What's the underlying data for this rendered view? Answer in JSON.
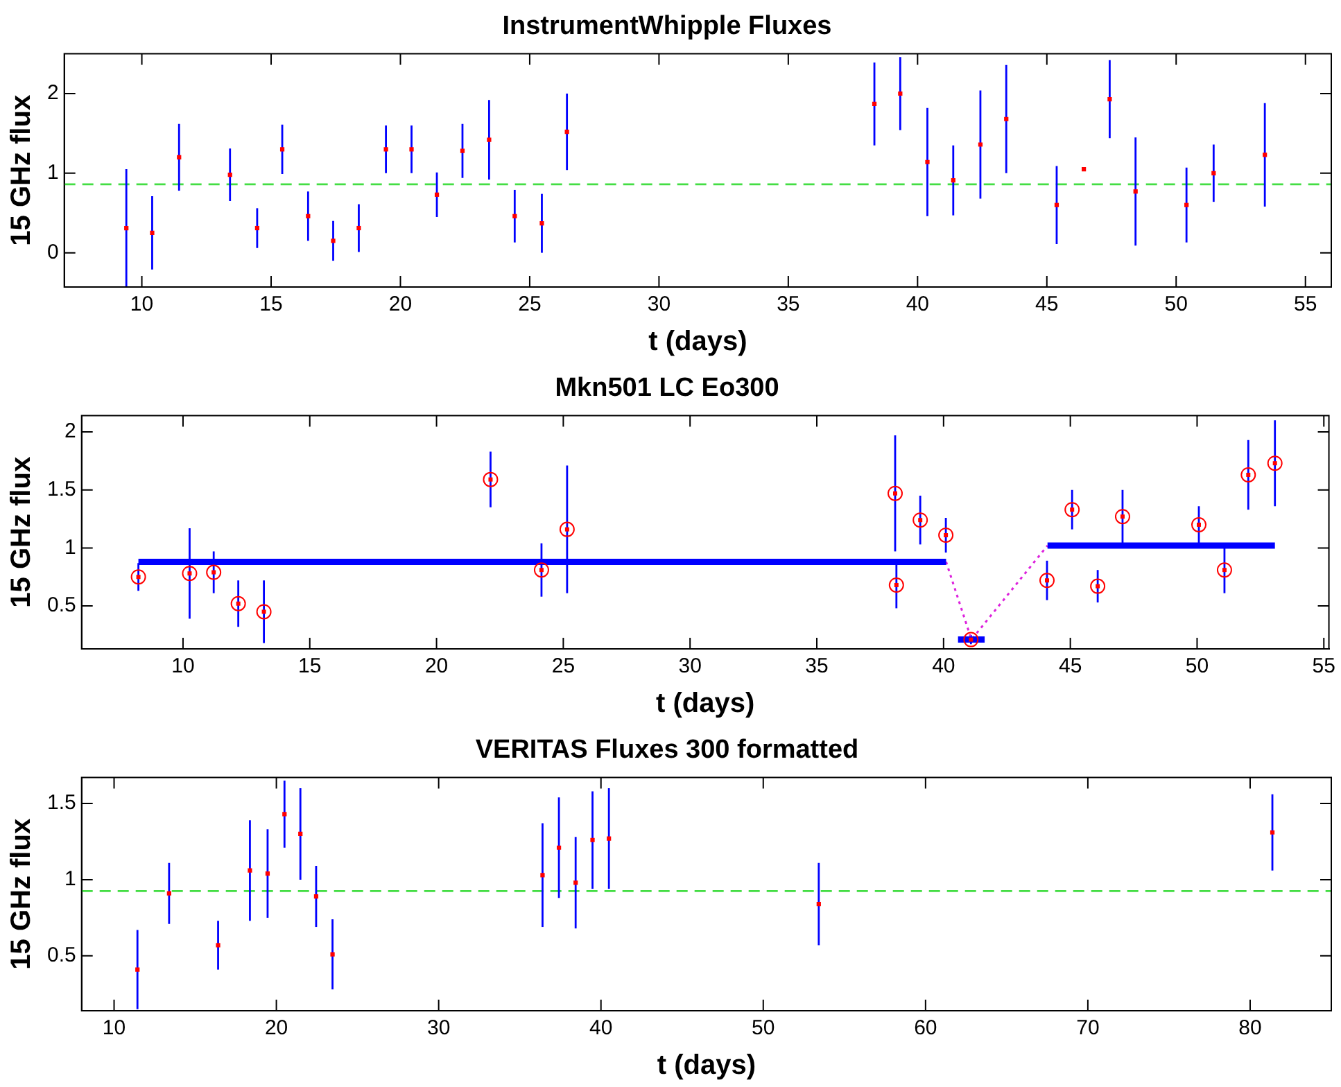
{
  "chart_data": [
    {
      "type": "scatter",
      "title": "InstrumentWhipple Fluxes",
      "xlabel": "t (days)",
      "ylabel": "15 GHz flux",
      "xlim": [
        7,
        56
      ],
      "xticks": [
        10,
        15,
        20,
        25,
        30,
        35,
        40,
        45,
        50,
        55
      ],
      "ylim": [
        -0.43,
        2.5
      ],
      "yticks": [
        0,
        1,
        2
      ],
      "grid": false,
      "legend": false,
      "marker": "square",
      "ref_lines": [
        {
          "axis": "y",
          "value": 0.86,
          "color": "#44dd44",
          "line_style": "dashed"
        }
      ],
      "series": [
        {
          "color": "#ff0000",
          "x": [
            9.4,
            10.4,
            11.44,
            13.41,
            14.46,
            15.43,
            16.43,
            17.4,
            18.39,
            19.44,
            20.43,
            21.41,
            22.4,
            23.43,
            24.42,
            25.47,
            26.44,
            38.33,
            39.33,
            40.38,
            41.38,
            42.43,
            43.43,
            45.38,
            46.43,
            47.43,
            48.43,
            50.4,
            51.45,
            53.43
          ],
          "values": [
            0.31,
            0.25,
            1.2,
            0.98,
            0.31,
            1.3,
            0.46,
            0.15,
            0.31,
            1.3,
            1.3,
            0.73,
            1.28,
            1.42,
            0.46,
            0.37,
            1.52,
            1.87,
            2.0,
            1.14,
            0.91,
            1.36,
            1.68,
            0.6,
            1.05,
            1.93,
            0.77,
            0.6,
            1.0,
            1.23
          ],
          "errors": [
            0.74,
            0.46,
            0.42,
            0.33,
            0.25,
            0.31,
            0.31,
            0.25,
            0.3,
            0.3,
            0.3,
            0.28,
            0.34,
            0.5,
            0.33,
            0.37,
            0.48,
            0.52,
            0.46,
            0.68,
            0.44,
            0.68,
            0.68,
            0.49,
            null,
            0.49,
            0.68,
            0.47,
            0.36,
            0.65
          ]
        }
      ]
    },
    {
      "type": "scatter",
      "title": "Mkn501 LC Eo300",
      "xlabel": "t (days)",
      "ylabel": "15 GHz flux",
      "xlim": [
        6,
        55.2
      ],
      "xticks": [
        10,
        15,
        20,
        25,
        30,
        35,
        40,
        45,
        50,
        55
      ],
      "ylim": [
        0.13,
        2.14
      ],
      "yticks": [
        0.5,
        1,
        1.5,
        2
      ],
      "grid": false,
      "legend": false,
      "marker": "circle",
      "series": [
        {
          "type": "line",
          "color": "#0000ff",
          "x": [
            8.24,
            40.1
          ],
          "values": [
            0.88,
            0.88
          ],
          "marker": "none",
          "line_style": "solid"
        },
        {
          "type": "line",
          "color": "#0000ff",
          "x": [
            40.57,
            41.62
          ],
          "values": [
            0.21,
            0.21
          ],
          "marker": "none",
          "line_style": "solid"
        },
        {
          "type": "line",
          "color": "#0000ff",
          "x": [
            44.1,
            53.07
          ],
          "values": [
            1.02,
            1.02
          ],
          "marker": "none",
          "line_style": "solid"
        },
        {
          "type": "line",
          "color": "#dd22dd",
          "x": [
            40.1,
            41.1,
            44.1
          ],
          "values": [
            0.88,
            0.21,
            1.02
          ],
          "marker": "none",
          "line_style": "dotted"
        },
        {
          "color": "#ff0000",
          "x": [
            8.24,
            10.26,
            11.21,
            12.18,
            13.19,
            22.13,
            24.14,
            25.15,
            38.09,
            38.14,
            39.08,
            40.09,
            41.08,
            44.08,
            45.07,
            46.08,
            47.06,
            50.07,
            51.08,
            52.02,
            53.07
          ],
          "values": [
            0.75,
            0.78,
            0.79,
            0.52,
            0.45,
            1.59,
            0.81,
            1.16,
            1.47,
            0.68,
            1.24,
            1.11,
            0.21,
            0.72,
            1.33,
            0.67,
            1.27,
            1.2,
            0.81,
            1.63,
            1.73
          ],
          "errors": [
            0.12,
            0.39,
            0.18,
            0.2,
            0.27,
            0.24,
            0.23,
            0.55,
            0.5,
            0.2,
            0.21,
            0.15,
            0.04,
            0.17,
            0.17,
            0.14,
            0.23,
            0.16,
            0.2,
            0.3,
            0.37
          ]
        }
      ]
    },
    {
      "type": "scatter",
      "title": "VERITAS Fluxes 300 formatted",
      "xlabel": "t (days)",
      "ylabel": "15 GHz flux",
      "xlim": [
        8,
        85
      ],
      "xticks": [
        10,
        20,
        30,
        40,
        50,
        60,
        70,
        80
      ],
      "ylim": [
        0.14,
        1.67
      ],
      "yticks": [
        0.5,
        1,
        1.5
      ],
      "grid": false,
      "legend": false,
      "marker": "square",
      "ref_lines": [
        {
          "axis": "y",
          "value": 0.925,
          "color": "#44dd44",
          "line_style": "dashed"
        }
      ],
      "series": [
        {
          "color": "#ff0000",
          "x": [
            11.44,
            13.39,
            16.41,
            18.37,
            19.46,
            20.5,
            21.48,
            22.45,
            23.46,
            36.4,
            37.41,
            38.44,
            39.48,
            40.49,
            53.42,
            81.37
          ],
          "values": [
            0.41,
            0.91,
            0.57,
            1.06,
            1.04,
            1.43,
            1.3,
            0.89,
            0.51,
            1.03,
            1.21,
            0.98,
            1.26,
            1.27,
            0.84,
            1.31
          ],
          "errors": [
            0.26,
            0.2,
            0.16,
            0.33,
            0.29,
            0.22,
            0.3,
            0.2,
            0.23,
            0.34,
            0.33,
            0.3,
            0.32,
            0.33,
            0.27,
            0.25
          ]
        }
      ]
    }
  ]
}
